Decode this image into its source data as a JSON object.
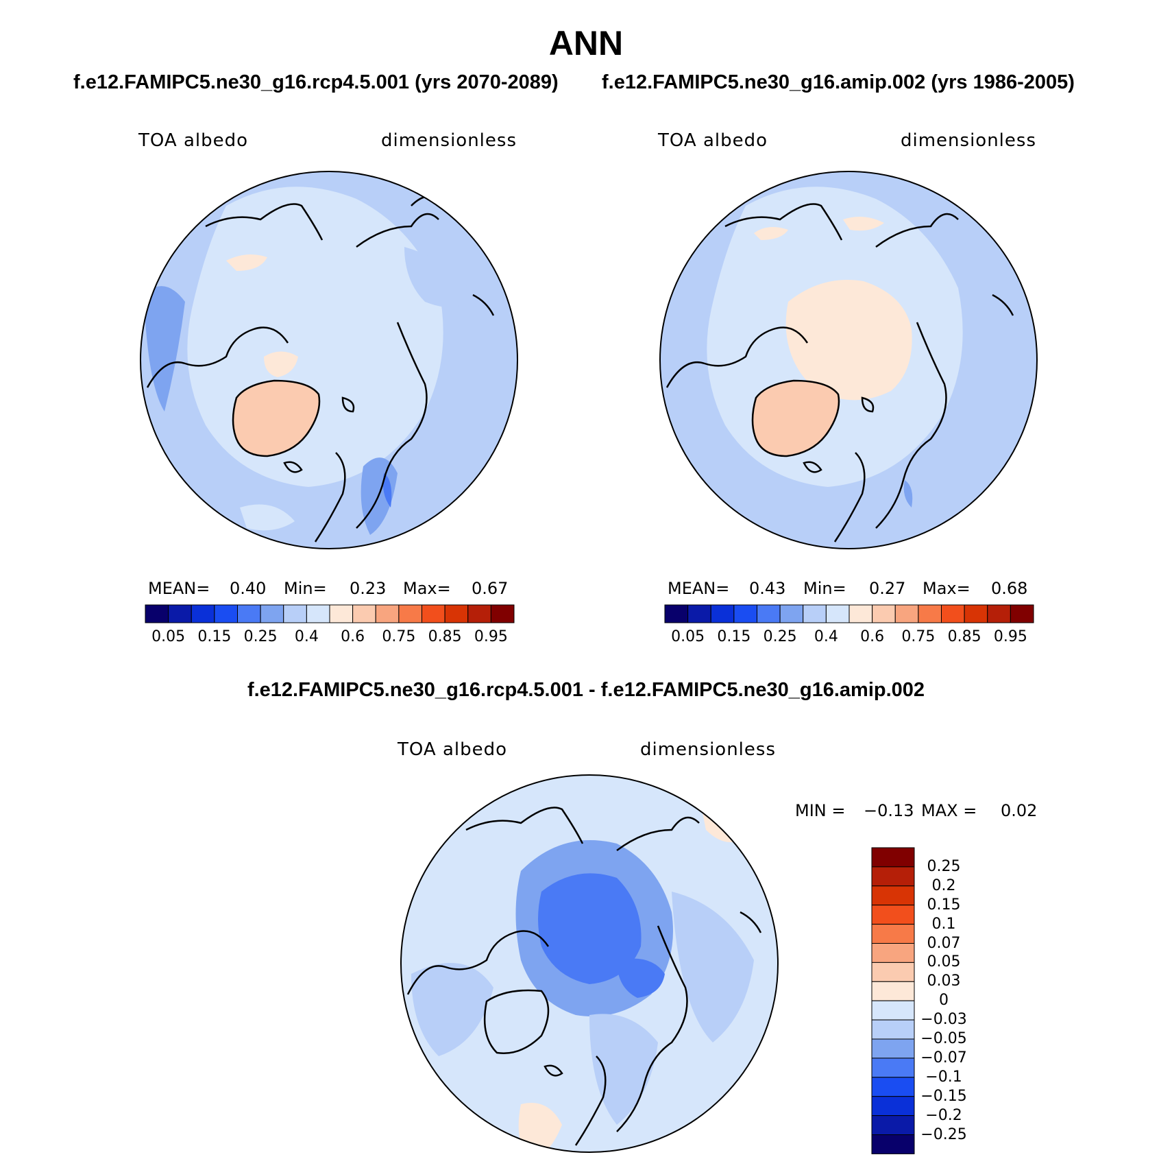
{
  "title": "ANN",
  "panels": [
    {
      "case_label": "f.e12.FAMIPC5.ne30_g16.rcp4.5.001 (yrs 2070-2089)",
      "variable": "TOA albedo",
      "units": "dimensionless",
      "stats": {
        "mean_label": "MEAN=",
        "mean": "0.40",
        "min_label": "Min=",
        "min": "0.23",
        "max_label": "Max=",
        "max": "0.67"
      }
    },
    {
      "case_label": "f.e12.FAMIPC5.ne30_g16.amip.002 (yrs 1986-2005)",
      "variable": "TOA albedo",
      "units": "dimensionless",
      "stats": {
        "mean_label": "MEAN=",
        "mean": "0.43",
        "min_label": "Min=",
        "min": "0.27",
        "max_label": "Max=",
        "max": "0.68"
      }
    }
  ],
  "colorbar_top": {
    "colors": [
      "#08006b",
      "#0a1aa8",
      "#0a30d8",
      "#1a4df2",
      "#4a7af5",
      "#7ea4f0",
      "#b8cff8",
      "#d6e6fb",
      "#fde8d8",
      "#fbcbb0",
      "#f8a57f",
      "#f77a48",
      "#f24f1c",
      "#d83405",
      "#b51f08",
      "#800000"
    ],
    "labels": [
      "0.05",
      "0.15",
      "0.25",
      "0.4",
      "0.6",
      "0.75",
      "0.85",
      "0.95"
    ]
  },
  "difference": {
    "title": "f.e12.FAMIPC5.ne30_g16.rcp4.5.001 - f.e12.FAMIPC5.ne30_g16.amip.002",
    "variable": "TOA albedo",
    "units": "dimensionless",
    "min_label": "MIN =",
    "min": "−0.13",
    "max_label": "MAX =",
    "max": "0.02",
    "colorbar": {
      "colors": [
        "#800000",
        "#b51f08",
        "#d83405",
        "#f24f1c",
        "#f77a48",
        "#f8a57f",
        "#fbcbb0",
        "#fde8d8",
        "#d6e6fb",
        "#b8cff8",
        "#7ea4f0",
        "#4a7af5",
        "#1a4df2",
        "#0a30d8",
        "#0a1aa8",
        "#08006b"
      ],
      "labels": [
        "0.25",
        "0.2",
        "0.15",
        "0.1",
        "0.07",
        "0.05",
        "0.03",
        "0",
        "−0.03",
        "−0.05",
        "−0.07",
        "−0.1",
        "−0.15",
        "−0.2",
        "−0.25"
      ]
    }
  }
}
